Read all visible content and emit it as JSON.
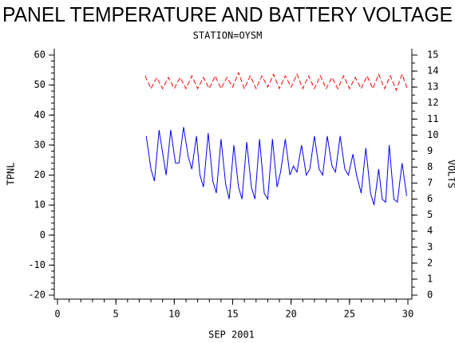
{
  "chart_data": {
    "type": "line",
    "title": "PANEL TEMPERATURE AND BATTERY VOLTAGE",
    "subtitle": "STATION=OYSM",
    "x_label": "SEP 2001",
    "y_label": "TPNL",
    "y2_label": "VOLTS",
    "xlim": [
      0,
      30
    ],
    "xticks": [
      0,
      5,
      10,
      15,
      20,
      25,
      30
    ],
    "ylim": [
      -20,
      60
    ],
    "yticks": [
      -20,
      -10,
      0,
      10,
      20,
      30,
      40,
      50,
      60
    ],
    "y2lim": [
      0,
      15
    ],
    "y2ticks": [
      0,
      1,
      2,
      3,
      4,
      5,
      6,
      7,
      8,
      9,
      10,
      11,
      12,
      13,
      14,
      15
    ],
    "series": [
      {
        "name": "TPNL",
        "color": "#0000ff",
        "dashed": false,
        "x": [
          7.6,
          8.0,
          8.3,
          8.7,
          9.1,
          9.3,
          9.7,
          10.1,
          10.4,
          10.8,
          11.2,
          11.5,
          11.9,
          12.2,
          12.5,
          12.9,
          13.3,
          13.6,
          14.0,
          14.4,
          14.7,
          15.1,
          15.5,
          15.8,
          16.2,
          16.6,
          16.9,
          17.3,
          17.7,
          18.0,
          18.4,
          18.8,
          19.1,
          19.5,
          19.9,
          20.2,
          20.5,
          20.9,
          21.3,
          21.6,
          22.0,
          22.4,
          22.7,
          23.1,
          23.5,
          23.8,
          24.2,
          24.6,
          24.9,
          25.3,
          25.6,
          26.0,
          26.4,
          26.8,
          27.1,
          27.5,
          27.8,
          28.1,
          28.4,
          28.8,
          29.1,
          29.5,
          29.9
        ],
        "values": [
          33,
          22,
          18,
          35,
          25,
          20,
          35,
          24,
          24,
          36,
          26,
          22,
          33,
          20,
          16,
          34,
          18,
          14,
          32,
          17,
          12,
          30,
          16,
          12,
          31,
          16,
          12,
          32,
          14,
          12,
          32,
          16,
          21,
          32,
          20,
          23,
          21,
          30,
          20,
          22,
          33,
          22,
          20,
          33,
          23,
          21,
          33,
          22,
          20,
          27,
          20,
          14,
          29,
          14,
          10,
          22,
          12,
          11,
          30,
          12,
          11,
          24,
          13
        ]
      },
      {
        "name": "VOLTS",
        "color": "#ff0000",
        "dashed": true,
        "axis": "y2",
        "x": [
          7.5,
          8.0,
          8.5,
          9.0,
          9.5,
          10.0,
          10.5,
          11.0,
          11.5,
          12.0,
          12.5,
          13.0,
          13.5,
          14.0,
          14.5,
          15.0,
          15.5,
          16.0,
          16.5,
          17.0,
          17.5,
          18.0,
          18.5,
          19.0,
          19.5,
          20.0,
          20.5,
          21.0,
          21.5,
          22.0,
          22.5,
          23.0,
          23.5,
          24.0,
          24.5,
          25.0,
          25.5,
          26.0,
          26.5,
          27.0,
          27.5,
          28.0,
          28.5,
          29.0,
          29.5,
          30.0
        ],
        "values": [
          13.7,
          12.9,
          13.6,
          12.9,
          13.6,
          12.9,
          13.6,
          12.9,
          13.7,
          12.9,
          13.6,
          12.9,
          13.7,
          12.9,
          13.6,
          13.0,
          13.9,
          12.9,
          13.7,
          12.9,
          13.7,
          13.0,
          13.8,
          12.9,
          13.7,
          13.0,
          13.8,
          12.9,
          13.7,
          12.9,
          13.7,
          12.9,
          13.6,
          12.9,
          13.7,
          12.9,
          13.6,
          12.9,
          13.7,
          12.9,
          13.8,
          12.9,
          13.7,
          12.8,
          13.8,
          12.8
        ]
      }
    ]
  }
}
